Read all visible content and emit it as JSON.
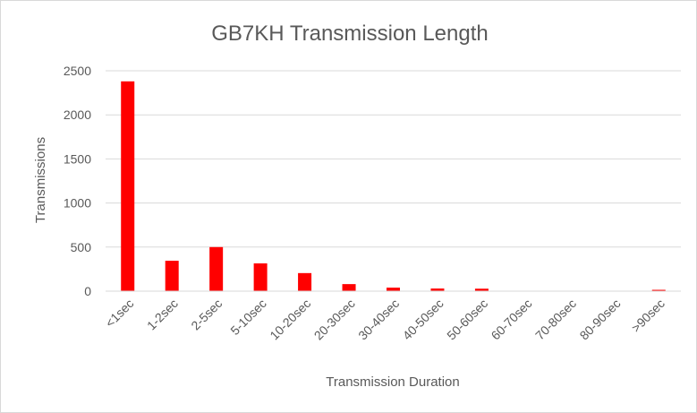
{
  "chart_data": {
    "type": "bar",
    "title": "GB7KH Transmission Length",
    "xlabel": "Transmission Duration",
    "ylabel": "Transmissions",
    "categories": [
      "<1sec",
      "1-2sec",
      "2-5sec",
      "5-10sec",
      "10-20sec",
      "20-30sec",
      "30-40sec",
      "40-50sec",
      "50-60sec",
      "60-70sec",
      "70-80sec",
      "80-90sec",
      ">90sec"
    ],
    "values": [
      2380,
      345,
      500,
      315,
      205,
      80,
      40,
      30,
      28,
      0,
      0,
      0,
      15
    ],
    "ylim": [
      0,
      2500
    ],
    "yticks": [
      0,
      500,
      1000,
      1500,
      2000,
      2500
    ],
    "grid": "horizontal",
    "legend": "none",
    "bar_color": "#ff0000",
    "grid_color": "#d9d9d9",
    "text_color": "#595959"
  }
}
